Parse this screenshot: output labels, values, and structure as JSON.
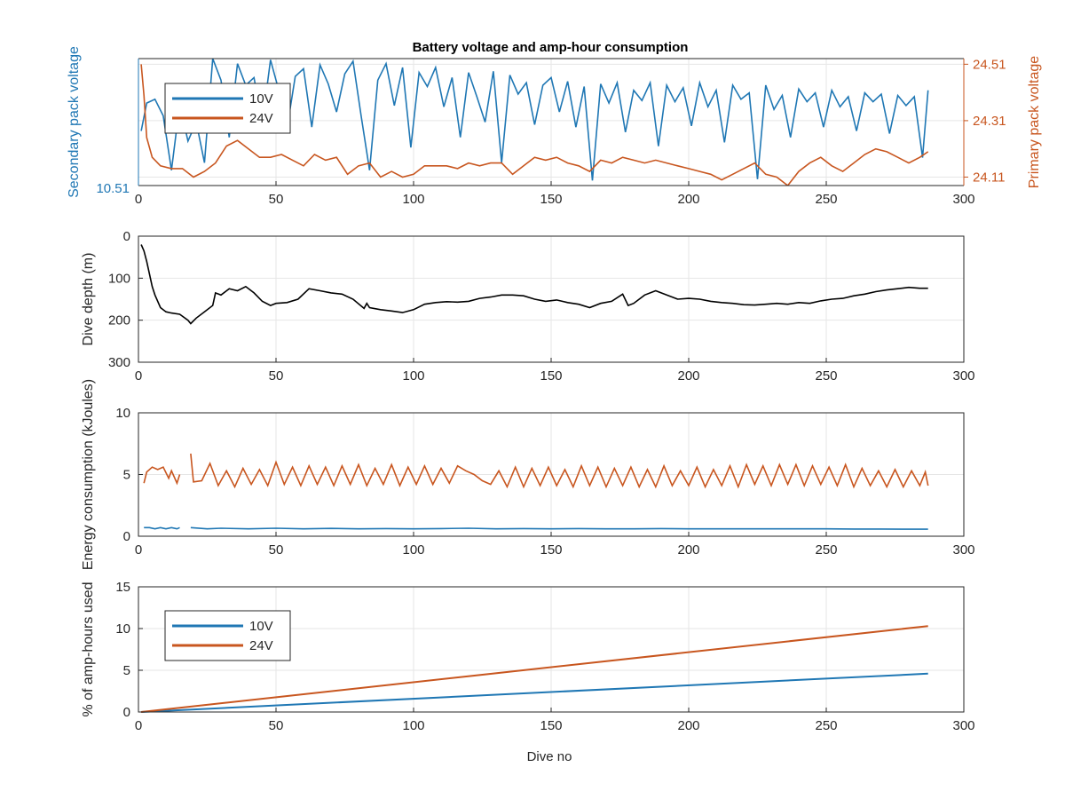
{
  "figure": {
    "title": "Battery voltage and amp-hour consumption",
    "xlabel": "Dive no"
  },
  "colors": {
    "blue": "#1f77b4",
    "orange": "#c8561f",
    "black": "#000000",
    "grid": "#e6e6e6",
    "axis": "#262626"
  },
  "chart_data": [
    {
      "id": "voltage",
      "type": "line",
      "xlim": [
        0,
        300
      ],
      "xticks": [
        0,
        50,
        100,
        150,
        200,
        250,
        300
      ],
      "ylabel_left": "Secondary pack voltage",
      "ylabel_right": "Primary pack voltage",
      "left_ylim": [
        10.51,
        10.61
      ],
      "left_ticklabels": [
        "10.51"
      ],
      "right_ylim": [
        24.08,
        24.53
      ],
      "right_yticks": [
        24.11,
        24.31,
        24.51
      ],
      "right_ticklabels": [
        "24.11",
        "24.31",
        "24.51"
      ],
      "legend": {
        "placement": "top-left",
        "entries": [
          "10V",
          "24V"
        ]
      },
      "series": [
        {
          "name": "10V",
          "axis": "left",
          "x": [
            1,
            3,
            6,
            9,
            12,
            15,
            18,
            21,
            24,
            27,
            30,
            33,
            36,
            39,
            42,
            45,
            48,
            51,
            54,
            57,
            60,
            63,
            66,
            69,
            72,
            75,
            78,
            81,
            84,
            87,
            90,
            93,
            96,
            99,
            102,
            105,
            108,
            111,
            114,
            117,
            120,
            123,
            126,
            129,
            132,
            135,
            138,
            141,
            144,
            147,
            150,
            153,
            156,
            159,
            162,
            165,
            168,
            171,
            174,
            177,
            180,
            183,
            186,
            189,
            192,
            195,
            198,
            201,
            204,
            207,
            210,
            213,
            216,
            219,
            222,
            225,
            228,
            231,
            234,
            237,
            240,
            243,
            246,
            249,
            252,
            255,
            258,
            261,
            264,
            267,
            270,
            273,
            276,
            279,
            282,
            285,
            287
          ],
          "y": [
            10.553,
            10.575,
            10.578,
            10.565,
            10.522,
            10.574,
            10.545,
            10.56,
            10.528,
            10.61,
            10.593,
            10.548,
            10.606,
            10.589,
            10.595,
            10.559,
            10.609,
            10.585,
            10.555,
            10.596,
            10.602,
            10.556,
            10.605,
            10.59,
            10.568,
            10.598,
            10.608,
            10.564,
            10.522,
            10.593,
            10.606,
            10.573,
            10.603,
            10.54,
            10.599,
            10.588,
            10.603,
            10.572,
            10.595,
            10.548,
            10.599,
            10.58,
            10.56,
            10.6,
            10.528,
            10.597,
            10.582,
            10.591,
            10.558,
            10.589,
            10.595,
            10.568,
            10.592,
            10.556,
            10.588,
            10.514,
            10.59,
            10.575,
            10.591,
            10.552,
            10.585,
            10.577,
            10.591,
            10.541,
            10.589,
            10.576,
            10.587,
            10.557,
            10.591,
            10.572,
            10.585,
            10.544,
            10.589,
            10.578,
            10.583,
            10.515,
            10.589,
            10.57,
            10.581,
            10.548,
            10.586,
            10.576,
            10.583,
            10.556,
            10.585,
            10.572,
            10.58,
            10.553,
            10.583,
            10.576,
            10.582,
            10.551,
            10.581,
            10.573,
            10.58,
            10.532,
            10.585
          ]
        },
        {
          "name": "24V",
          "axis": "right",
          "x": [
            1,
            2,
            3,
            5,
            8,
            12,
            16,
            20,
            24,
            28,
            32,
            36,
            40,
            44,
            48,
            52,
            56,
            60,
            64,
            68,
            72,
            76,
            80,
            84,
            88,
            92,
            96,
            100,
            104,
            108,
            112,
            116,
            120,
            124,
            128,
            132,
            136,
            140,
            144,
            148,
            152,
            156,
            160,
            164,
            168,
            172,
            176,
            180,
            184,
            188,
            192,
            196,
            200,
            204,
            208,
            212,
            216,
            220,
            224,
            228,
            232,
            236,
            240,
            244,
            248,
            252,
            256,
            260,
            264,
            268,
            272,
            276,
            280,
            284,
            287
          ],
          "y": [
            24.51,
            24.4,
            24.25,
            24.18,
            24.15,
            24.14,
            24.14,
            24.11,
            24.13,
            24.16,
            24.22,
            24.24,
            24.21,
            24.18,
            24.18,
            24.19,
            24.17,
            24.15,
            24.19,
            24.17,
            24.18,
            24.12,
            24.15,
            24.16,
            24.11,
            24.13,
            24.11,
            24.12,
            24.15,
            24.15,
            24.15,
            24.14,
            24.16,
            24.15,
            24.16,
            24.16,
            24.12,
            24.15,
            24.18,
            24.17,
            24.18,
            24.16,
            24.15,
            24.13,
            24.17,
            24.16,
            24.18,
            24.17,
            24.16,
            24.17,
            24.16,
            24.15,
            24.14,
            24.13,
            24.12,
            24.1,
            24.12,
            24.14,
            24.16,
            24.12,
            24.11,
            24.08,
            24.13,
            24.16,
            24.18,
            24.15,
            24.13,
            24.16,
            24.19,
            24.21,
            24.2,
            24.18,
            24.16,
            24.18,
            24.2
          ]
        }
      ]
    },
    {
      "id": "depth",
      "type": "line",
      "xlim": [
        0,
        300
      ],
      "xticks": [
        0,
        50,
        100,
        150,
        200,
        250,
        300
      ],
      "ylabel": "Dive depth (m)",
      "ylim": [
        0,
        300
      ],
      "reversed": true,
      "yticks": [
        0,
        100,
        200,
        300
      ],
      "series": [
        {
          "name": "",
          "x": [
            1,
            2,
            3,
            4,
            5,
            6,
            8,
            10,
            12,
            15,
            18,
            19,
            21,
            24,
            27,
            28,
            30,
            33,
            36,
            39,
            42,
            45,
            48,
            50,
            54,
            58,
            62,
            66,
            70,
            74,
            78,
            82,
            83,
            84,
            88,
            92,
            96,
            100,
            104,
            108,
            112,
            116,
            120,
            124,
            128,
            132,
            136,
            140,
            144,
            148,
            152,
            156,
            160,
            164,
            168,
            172,
            176,
            178,
            180,
            184,
            188,
            192,
            196,
            200,
            204,
            208,
            212,
            216,
            220,
            224,
            228,
            232,
            236,
            240,
            244,
            248,
            252,
            256,
            260,
            264,
            268,
            272,
            276,
            280,
            284,
            287
          ],
          "y": [
            20,
            35,
            60,
            90,
            120,
            140,
            170,
            180,
            183,
            186,
            200,
            208,
            195,
            180,
            165,
            135,
            140,
            125,
            130,
            120,
            135,
            155,
            165,
            160,
            158,
            150,
            125,
            130,
            135,
            138,
            150,
            172,
            160,
            170,
            175,
            178,
            182,
            175,
            162,
            158,
            156,
            157,
            155,
            148,
            145,
            140,
            140,
            142,
            150,
            155,
            152,
            158,
            162,
            170,
            160,
            155,
            138,
            165,
            160,
            140,
            130,
            140,
            150,
            148,
            150,
            155,
            158,
            160,
            163,
            164,
            162,
            160,
            162,
            158,
            160,
            154,
            150,
            148,
            142,
            138,
            132,
            128,
            125,
            122,
            124,
            124
          ]
        }
      ]
    },
    {
      "id": "energy",
      "type": "line",
      "xlim": [
        0,
        300
      ],
      "xticks": [
        0,
        50,
        100,
        150,
        200,
        250,
        300
      ],
      "ylabel": "Energy consumption (kJoules)",
      "ylim": [
        0,
        10
      ],
      "yticks": [
        0,
        5,
        10
      ],
      "series": [
        {
          "name": "24V",
          "segments": [
            {
              "x": [
                2,
                3,
                5,
                7,
                9,
                11,
                12,
                14,
                15
              ],
              "y": [
                4.3,
                5.2,
                5.6,
                5.4,
                5.6,
                4.7,
                5.3,
                4.3,
                5.0
              ]
            },
            {
              "x": [
                19,
                20,
                23,
                26,
                29,
                32,
                35,
                38,
                41,
                44,
                47,
                50,
                53,
                56,
                59,
                62,
                65,
                68,
                71,
                74,
                77,
                80,
                83,
                86,
                89,
                92,
                95,
                98,
                101,
                104,
                107,
                110,
                113,
                116,
                119,
                122,
                125,
                128,
                131,
                134,
                137,
                140,
                143,
                146,
                149,
                152,
                155,
                158,
                161,
                164,
                167,
                170,
                173,
                176,
                179,
                182,
                185,
                188,
                191,
                194,
                197,
                200,
                203,
                206,
                209,
                212,
                215,
                218,
                221,
                224,
                227,
                230,
                233,
                236,
                239,
                242,
                245,
                248,
                251,
                254,
                257,
                260,
                263,
                266,
                269,
                272,
                275,
                278,
                281,
                284,
                286,
                287
              ],
              "y": [
                6.7,
                4.4,
                4.5,
                5.9,
                4.1,
                5.3,
                4.0,
                5.5,
                4.2,
                5.4,
                4.1,
                6.0,
                4.2,
                5.6,
                4.1,
                5.7,
                4.2,
                5.6,
                4.1,
                5.7,
                4.2,
                5.8,
                4.1,
                5.5,
                4.2,
                5.8,
                4.1,
                5.6,
                4.2,
                5.7,
                4.2,
                5.5,
                4.3,
                5.7,
                5.3,
                5.0,
                4.5,
                4.2,
                5.3,
                4.0,
                5.6,
                4.0,
                5.5,
                4.1,
                5.6,
                4.1,
                5.4,
                4.0,
                5.7,
                4.1,
                5.6,
                4.0,
                5.5,
                4.1,
                5.6,
                4.0,
                5.4,
                4.0,
                5.7,
                4.1,
                5.3,
                4.1,
                5.6,
                4.0,
                5.4,
                4.1,
                5.7,
                4.0,
                5.8,
                4.2,
                5.7,
                4.1,
                5.8,
                4.2,
                5.8,
                4.1,
                5.7,
                4.2,
                5.6,
                4.1,
                5.8,
                4.0,
                5.5,
                4.1,
                5.3,
                4.0,
                5.4,
                4.0,
                5.3,
                4.1,
                5.2,
                4.1
              ]
            }
          ]
        },
        {
          "name": "10V",
          "segments": [
            {
              "x": [
                2,
                4,
                6,
                8,
                10,
                12,
                14,
                15
              ],
              "y": [
                0.7,
                0.7,
                0.6,
                0.7,
                0.6,
                0.7,
                0.6,
                0.7
              ]
            },
            {
              "x": [
                19,
                25,
                30,
                40,
                50,
                60,
                70,
                80,
                90,
                100,
                110,
                120,
                130,
                140,
                150,
                160,
                170,
                180,
                190,
                200,
                210,
                220,
                230,
                240,
                250,
                260,
                270,
                280,
                287
              ],
              "y": [
                0.7,
                0.6,
                0.65,
                0.6,
                0.65,
                0.6,
                0.63,
                0.6,
                0.62,
                0.6,
                0.62,
                0.65,
                0.6,
                0.62,
                0.6,
                0.62,
                0.6,
                0.6,
                0.62,
                0.6,
                0.6,
                0.6,
                0.6,
                0.6,
                0.6,
                0.58,
                0.58,
                0.57,
                0.57
              ]
            }
          ]
        }
      ]
    },
    {
      "id": "amphours",
      "type": "line",
      "xlim": [
        0,
        300
      ],
      "xticks": [
        0,
        50,
        100,
        150,
        200,
        250,
        300
      ],
      "xlabel": "Dive no",
      "ylabel": "% of amp-hours used",
      "ylim": [
        0,
        15
      ],
      "yticks": [
        0,
        5,
        10,
        15
      ],
      "legend": {
        "placement": "top-left",
        "entries": [
          "10V",
          "24V"
        ]
      },
      "series": [
        {
          "name": "10V",
          "x": [
            1,
            287
          ],
          "y": [
            0,
            4.6
          ]
        },
        {
          "name": "24V",
          "x": [
            1,
            287
          ],
          "y": [
            0,
            10.3
          ]
        }
      ]
    }
  ]
}
